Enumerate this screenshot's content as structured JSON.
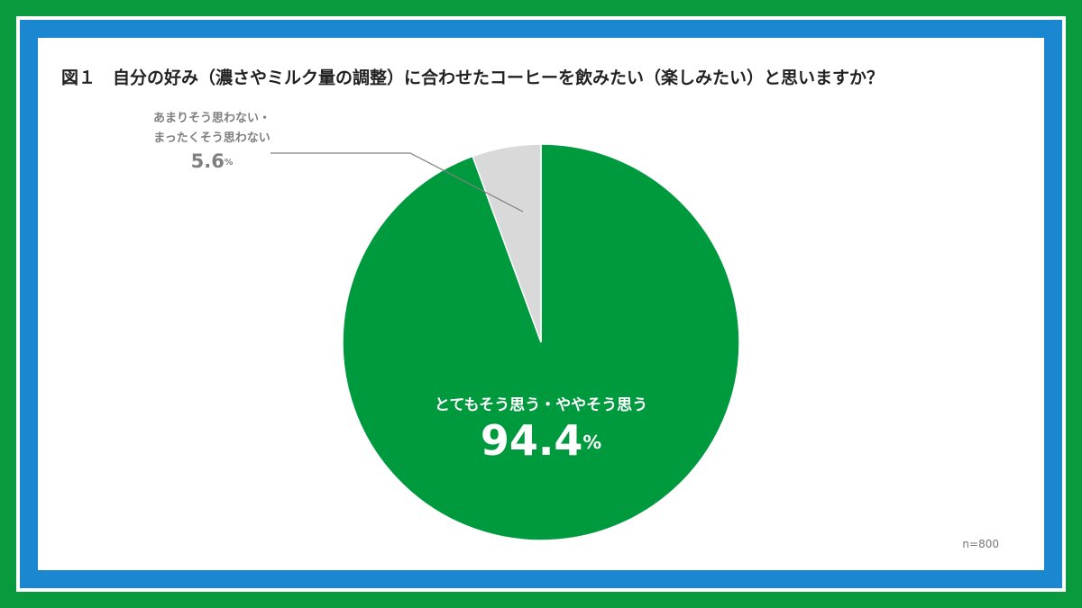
{
  "chart_data": {
    "type": "pie",
    "title": "図１　自分の好み（濃さやミルク量の調整）に合わせたコーヒーを飲みたい（楽しみたい）と思いますか？",
    "categories": [
      "とてもそう思う・ややそう思う",
      "あまりそう思わない・\nまったくそう思わない"
    ],
    "values": [
      94.4,
      5.6
    ],
    "value_labels": [
      "94.4%",
      "5.6%"
    ],
    "colors": [
      "#009a3e",
      "#d9d9d9"
    ],
    "note": "n=800"
  }
}
